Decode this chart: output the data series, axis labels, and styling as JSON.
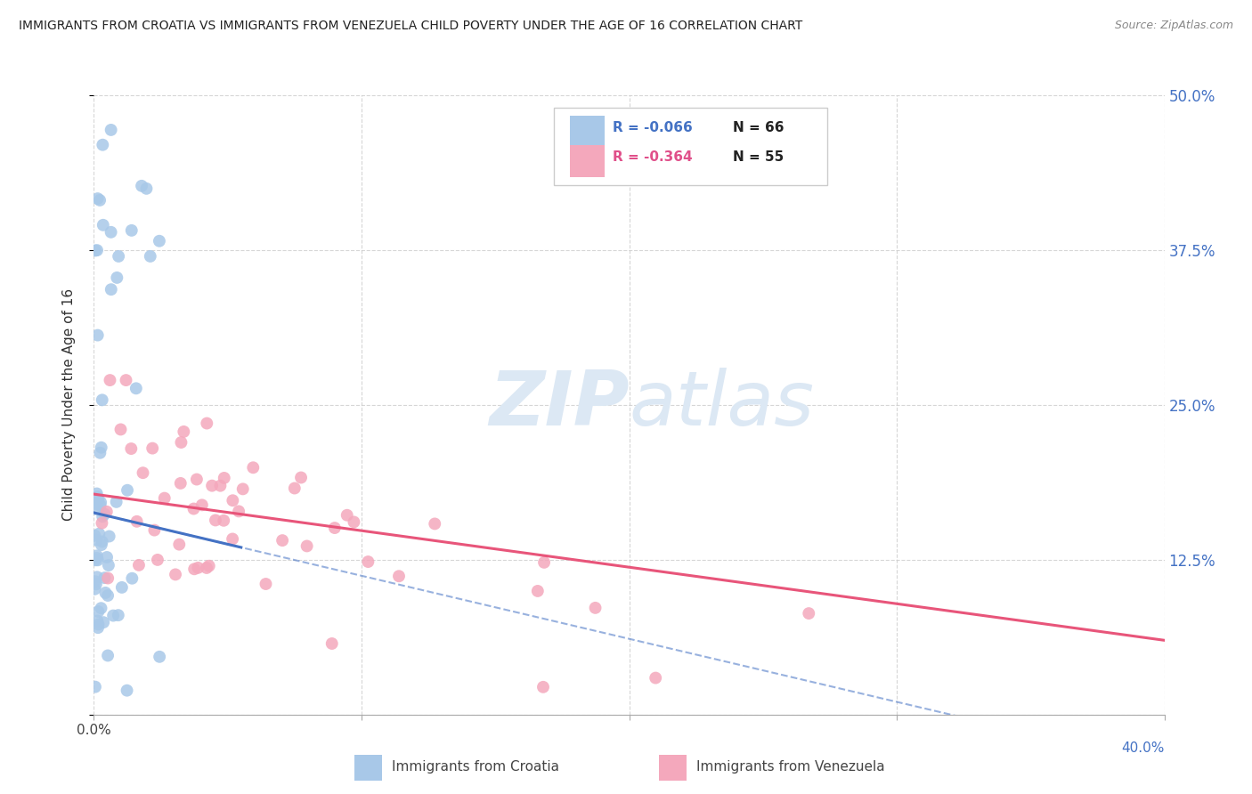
{
  "title": "IMMIGRANTS FROM CROATIA VS IMMIGRANTS FROM VENEZUELA CHILD POVERTY UNDER THE AGE OF 16 CORRELATION CHART",
  "source": "Source: ZipAtlas.com",
  "ylabel": "Child Poverty Under the Age of 16",
  "xlim": [
    0.0,
    0.4
  ],
  "ylim": [
    0.0,
    0.5
  ],
  "ytick_labels": [
    "",
    "12.5%",
    "25.0%",
    "37.5%",
    "50.0%"
  ],
  "color_croatia": "#a8c8e8",
  "color_venezuela": "#f4a8bc",
  "color_croatia_line": "#4472c4",
  "color_venezuela_line": "#e8557a",
  "color_right_axis": "#4472c4",
  "color_grid": "#cccccc",
  "watermark_color": "#dce8f4"
}
